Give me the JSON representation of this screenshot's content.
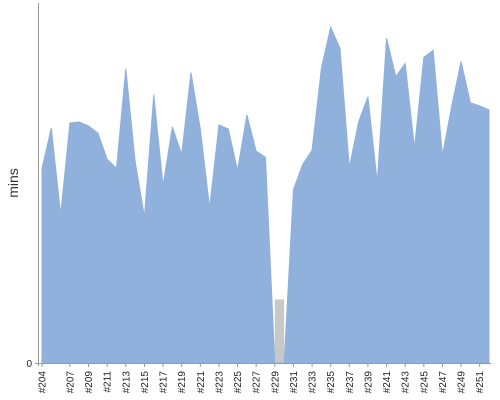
{
  "colors": {
    "area_fill": "#8fb1dc",
    "area_stroke": "#8fb1dc",
    "gap_fill": "#c8c8c8",
    "axis": "#999999"
  },
  "chart_data": {
    "type": "area",
    "title": "",
    "xlabel": "",
    "ylabel": "mins",
    "ylim": [
      0,
      350
    ],
    "y_ticks": [
      {
        "value": 0,
        "label": "0"
      }
    ],
    "grid": false,
    "categories": [
      "#204",
      "#205",
      "#206",
      "#207",
      "#208",
      "#209",
      "#210",
      "#211",
      "#212",
      "#213",
      "#214",
      "#215",
      "#216",
      "#217",
      "#218",
      "#219",
      "#220",
      "#221",
      "#222",
      "#223",
      "#224",
      "#225",
      "#226",
      "#227",
      "#228",
      "#229",
      "#230",
      "#231",
      "#232",
      "#233",
      "#234",
      "#235",
      "#236",
      "#237",
      "#238",
      "#239",
      "#240",
      "#241",
      "#242",
      "#243",
      "#244",
      "#245",
      "#246",
      "#247",
      "#248",
      "#249",
      "#250",
      "#251",
      "#252"
    ],
    "tick_labels": [
      "#204",
      "#207",
      "#209",
      "#211",
      "#213",
      "#215",
      "#217",
      "#219",
      "#221",
      "#223",
      "#225",
      "#227",
      "#229",
      "#231",
      "#233",
      "#235",
      "#237",
      "#239",
      "#241",
      "#243",
      "#245",
      "#247",
      "#249",
      "#251"
    ],
    "series": [
      {
        "values": [
          193,
          233,
          147,
          238,
          239,
          235,
          228,
          202,
          193,
          292,
          200,
          145,
          266,
          176,
          234,
          207,
          288,
          232,
          154,
          236,
          232,
          191,
          246,
          210,
          204,
          0,
          0,
          172,
          197,
          211,
          292,
          333,
          312,
          194,
          239,
          264,
          179,
          322,
          284,
          297,
          213,
          303,
          310,
          206,
          255,
          299,
          258,
          255,
          251
        ]
      }
    ],
    "gaps": [
      {
        "from": "#229",
        "to": "#230"
      }
    ]
  }
}
